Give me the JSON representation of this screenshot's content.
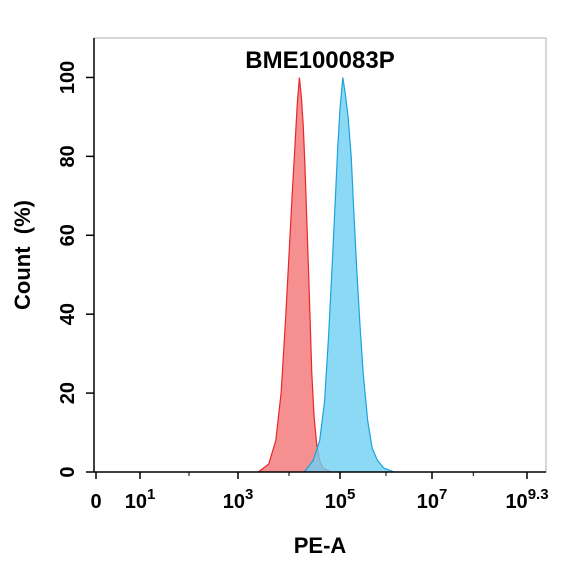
{
  "chart_data": {
    "type": "area",
    "title": "BME100083P",
    "xlabel": "PE-A",
    "ylabel": "Count  (%)",
    "x_scale": "biexponential-log",
    "xlim": [
      0,
      2000000000
    ],
    "ylim": [
      0,
      110
    ],
    "yticks": [
      0,
      20,
      40,
      60,
      80,
      100
    ],
    "xtick_labels": [
      {
        "value": 0,
        "base": "0",
        "exp": ""
      },
      {
        "value": 10,
        "base": "10",
        "exp": "1"
      },
      {
        "value": 1000,
        "base": "10",
        "exp": "3"
      },
      {
        "value": 100000,
        "base": "10",
        "exp": "5"
      },
      {
        "value": 10000000,
        "base": "10",
        "exp": "7"
      },
      {
        "value": 2000000000,
        "base": "10",
        "exp": "9.3"
      }
    ],
    "grid": false,
    "series": [
      {
        "color": "#e8262b",
        "fill": "#f47c7c",
        "x": [
          2500,
          4000,
          5500,
          7000,
          8500,
          10000,
          11500,
          13000,
          14500,
          16000,
          17500,
          19000,
          20500,
          22000,
          24000,
          26000,
          28000,
          31000,
          35000,
          40000,
          46000,
          55000,
          70000
        ],
        "y": [
          0,
          2,
          8,
          20,
          38,
          55,
          70,
          82,
          93,
          100,
          95,
          88,
          78,
          66,
          52,
          38,
          25,
          14,
          7,
          3,
          1,
          0.5,
          0
        ]
      },
      {
        "color": "#1aa3dc",
        "fill": "#6fd0f2",
        "x": [
          20000,
          30000,
          40000,
          50000,
          60000,
          70000,
          80000,
          90000,
          100000,
          115000,
          130000,
          150000,
          175000,
          200000,
          230000,
          270000,
          320000,
          400000,
          500000,
          650000,
          900000,
          1500000
        ],
        "y": [
          0,
          3,
          8,
          18,
          35,
          52,
          68,
          82,
          92,
          100,
          96,
          90,
          80,
          66,
          52,
          38,
          25,
          13,
          6,
          3,
          1,
          0
        ]
      }
    ]
  }
}
